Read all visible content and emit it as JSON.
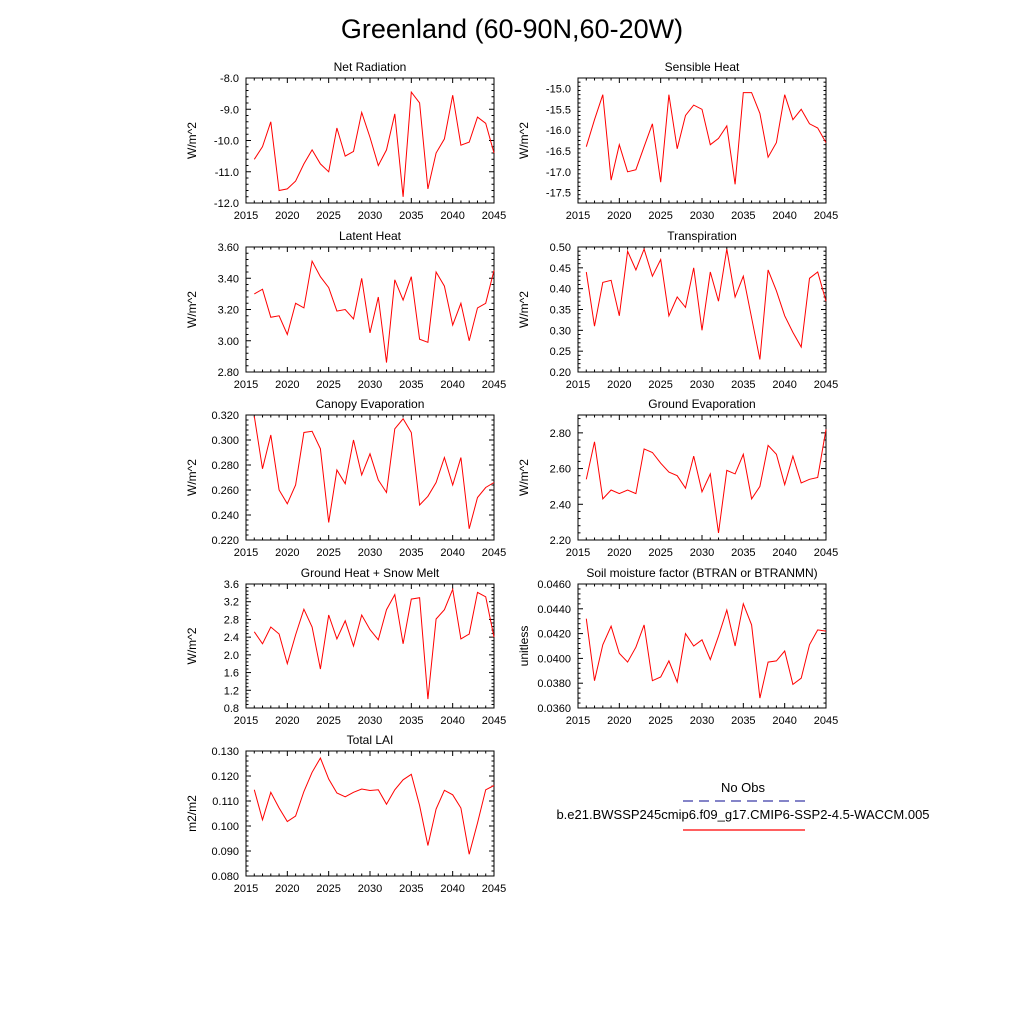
{
  "title": "Greenland (60-90N,60-20W)",
  "colors": {
    "model": "#ff0000",
    "obs": "#3b3ba8",
    "axis": "#000000"
  },
  "legend": {
    "obs_label": "No Obs",
    "model_label": "b.e21.BWSSP245cmip6.f09_g17.CMIP6-SSP2-4.5-WACCM.005"
  },
  "chart_data": [
    {
      "type": "line",
      "title": "Net Radiation",
      "ylabel": "W/m^2",
      "xlim": [
        2015,
        2045
      ],
      "ylim": [
        -12.0,
        -8.0
      ],
      "xticks": [
        2015,
        2020,
        2025,
        2030,
        2035,
        2040,
        2045
      ],
      "xtick_labels": [
        "2015",
        "2020",
        "2025",
        "2030",
        "2035",
        "2040",
        "2045"
      ],
      "yticks": [
        -12.0,
        -11.0,
        -10.0,
        -9.0,
        -8.0
      ],
      "ytick_labels": [
        "-12.0",
        "-11.0",
        "-10.0",
        "-9.0",
        "-8.0"
      ],
      "x": [
        2016,
        2017,
        2018,
        2019,
        2020,
        2021,
        2022,
        2023,
        2024,
        2025,
        2026,
        2027,
        2028,
        2029,
        2030,
        2031,
        2032,
        2033,
        2034,
        2035,
        2036,
        2037,
        2038,
        2039,
        2040,
        2041,
        2042,
        2043,
        2044,
        2045
      ],
      "series": [
        {
          "name": "b.e21.BWSSP245cmip6.f09_g17.CMIP6-SSP2-4.5-WACCM.005",
          "values": [
            -10.6,
            -10.2,
            -9.4,
            -11.6,
            -11.55,
            -11.3,
            -10.75,
            -10.3,
            -10.75,
            -11.0,
            -9.6,
            -10.5,
            -10.35,
            -9.1,
            -9.9,
            -10.8,
            -10.3,
            -9.15,
            -11.8,
            -8.45,
            -8.8,
            -11.55,
            -10.4,
            -9.95,
            -8.55,
            -10.15,
            -10.05,
            -9.25,
            -9.45,
            -10.4
          ]
        }
      ]
    },
    {
      "type": "line",
      "title": "Sensible Heat",
      "ylabel": "W/m^2",
      "xlim": [
        2015,
        2045
      ],
      "ylim": [
        -17.75,
        -14.75
      ],
      "xticks": [
        2015,
        2020,
        2025,
        2030,
        2035,
        2040,
        2045
      ],
      "xtick_labels": [
        "2015",
        "2020",
        "2025",
        "2030",
        "2035",
        "2040",
        "2045"
      ],
      "yticks": [
        -17.5,
        -17.0,
        -16.5,
        -16.0,
        -15.5,
        -15.0
      ],
      "ytick_labels": [
        "-17.5",
        "-17.0",
        "-16.5",
        "-16.0",
        "-15.5",
        "-15.0"
      ],
      "x": [
        2016,
        2017,
        2018,
        2019,
        2020,
        2021,
        2022,
        2023,
        2024,
        2025,
        2026,
        2027,
        2028,
        2029,
        2030,
        2031,
        2032,
        2033,
        2034,
        2035,
        2036,
        2037,
        2038,
        2039,
        2040,
        2041,
        2042,
        2043,
        2044,
        2045
      ],
      "series": [
        {
          "name": "b.e21.BWSSP245cmip6.f09_g17.CMIP6-SSP2-4.5-WACCM.005",
          "values": [
            -16.4,
            -15.75,
            -15.15,
            -17.2,
            -16.35,
            -17.0,
            -16.95,
            -16.4,
            -15.85,
            -17.25,
            -15.15,
            -16.45,
            -15.65,
            -15.4,
            -15.5,
            -16.35,
            -16.2,
            -15.9,
            -17.3,
            -15.1,
            -15.1,
            -15.6,
            -16.65,
            -16.3,
            -15.15,
            -15.75,
            -15.5,
            -15.85,
            -15.95,
            -16.3
          ]
        }
      ]
    },
    {
      "type": "line",
      "title": "Latent Heat",
      "ylabel": "W/m^2",
      "xlim": [
        2015,
        2045
      ],
      "ylim": [
        2.8,
        3.6
      ],
      "xticks": [
        2015,
        2020,
        2025,
        2030,
        2035,
        2040,
        2045
      ],
      "xtick_labels": [
        "2015",
        "2020",
        "2025",
        "2030",
        "2035",
        "2040",
        "2045"
      ],
      "yticks": [
        2.8,
        3.0,
        3.2,
        3.4,
        3.6
      ],
      "ytick_labels": [
        "2.80",
        "3.00",
        "3.20",
        "3.40",
        "3.60"
      ],
      "x": [
        2016,
        2017,
        2018,
        2019,
        2020,
        2021,
        2022,
        2023,
        2024,
        2025,
        2026,
        2027,
        2028,
        2029,
        2030,
        2031,
        2032,
        2033,
        2034,
        2035,
        2036,
        2037,
        2038,
        2039,
        2040,
        2041,
        2042,
        2043,
        2044,
        2045
      ],
      "series": [
        {
          "name": "b.e21.BWSSP245cmip6.f09_g17.CMIP6-SSP2-4.5-WACCM.005",
          "values": [
            3.3,
            3.33,
            3.15,
            3.16,
            3.04,
            3.24,
            3.21,
            3.51,
            3.41,
            3.34,
            3.19,
            3.2,
            3.14,
            3.4,
            3.05,
            3.28,
            2.86,
            3.39,
            3.26,
            3.41,
            3.01,
            2.99,
            3.44,
            3.35,
            3.1,
            3.24,
            3.0,
            3.21,
            3.24,
            3.45
          ]
        }
      ]
    },
    {
      "type": "line",
      "title": "Transpiration",
      "ylabel": "W/m^2",
      "xlim": [
        2015,
        2045
      ],
      "ylim": [
        0.2,
        0.5
      ],
      "xticks": [
        2015,
        2020,
        2025,
        2030,
        2035,
        2040,
        2045
      ],
      "xtick_labels": [
        "2015",
        "2020",
        "2025",
        "2030",
        "2035",
        "2040",
        "2045"
      ],
      "yticks": [
        0.2,
        0.25,
        0.3,
        0.35,
        0.4,
        0.45,
        0.5
      ],
      "ytick_labels": [
        "0.20",
        "0.25",
        "0.30",
        "0.35",
        "0.40",
        "0.45",
        "0.50"
      ],
      "x": [
        2016,
        2017,
        2018,
        2019,
        2020,
        2021,
        2022,
        2023,
        2024,
        2025,
        2026,
        2027,
        2028,
        2029,
        2030,
        2031,
        2032,
        2033,
        2034,
        2035,
        2036,
        2037,
        2038,
        2039,
        2040,
        2041,
        2042,
        2043,
        2044,
        2045
      ],
      "series": [
        {
          "name": "b.e21.BWSSP245cmip6.f09_g17.CMIP6-SSP2-4.5-WACCM.005",
          "values": [
            0.44,
            0.31,
            0.415,
            0.42,
            0.335,
            0.49,
            0.445,
            0.495,
            0.43,
            0.47,
            0.335,
            0.38,
            0.355,
            0.45,
            0.3,
            0.44,
            0.37,
            0.495,
            0.38,
            0.43,
            0.33,
            0.23,
            0.445,
            0.395,
            0.335,
            0.295,
            0.26,
            0.425,
            0.44,
            0.37
          ]
        }
      ]
    },
    {
      "type": "line",
      "title": "Canopy Evaporation",
      "ylabel": "W/m^2",
      "xlim": [
        2015,
        2045
      ],
      "ylim": [
        0.22,
        0.32
      ],
      "xticks": [
        2015,
        2020,
        2025,
        2030,
        2035,
        2040,
        2045
      ],
      "xtick_labels": [
        "2015",
        "2020",
        "2025",
        "2030",
        "2035",
        "2040",
        "2045"
      ],
      "yticks": [
        0.22,
        0.24,
        0.26,
        0.28,
        0.3,
        0.32
      ],
      "ytick_labels": [
        "0.220",
        "0.240",
        "0.260",
        "0.280",
        "0.300",
        "0.320"
      ],
      "x": [
        2016,
        2017,
        2018,
        2019,
        2020,
        2021,
        2022,
        2023,
        2024,
        2025,
        2026,
        2027,
        2028,
        2029,
        2030,
        2031,
        2032,
        2033,
        2034,
        2035,
        2036,
        2037,
        2038,
        2039,
        2040,
        2041,
        2042,
        2043,
        2044,
        2045
      ],
      "series": [
        {
          "name": "b.e21.BWSSP245cmip6.f09_g17.CMIP6-SSP2-4.5-WACCM.005",
          "values": [
            0.319,
            0.277,
            0.304,
            0.26,
            0.249,
            0.264,
            0.306,
            0.307,
            0.293,
            0.234,
            0.276,
            0.265,
            0.3,
            0.272,
            0.289,
            0.268,
            0.258,
            0.309,
            0.317,
            0.306,
            0.248,
            0.255,
            0.266,
            0.286,
            0.264,
            0.286,
            0.229,
            0.254,
            0.262,
            0.266
          ]
        }
      ]
    },
    {
      "type": "line",
      "title": "Ground Evaporation",
      "ylabel": "W/m^2",
      "xlim": [
        2015,
        2045
      ],
      "ylim": [
        2.2,
        2.9
      ],
      "xticks": [
        2015,
        2020,
        2025,
        2030,
        2035,
        2040,
        2045
      ],
      "xtick_labels": [
        "2015",
        "2020",
        "2025",
        "2030",
        "2035",
        "2040",
        "2045"
      ],
      "yticks": [
        2.2,
        2.4,
        2.6,
        2.8
      ],
      "ytick_labels": [
        "2.20",
        "2.40",
        "2.60",
        "2.80"
      ],
      "x": [
        2016,
        2017,
        2018,
        2019,
        2020,
        2021,
        2022,
        2023,
        2024,
        2025,
        2026,
        2027,
        2028,
        2029,
        2030,
        2031,
        2032,
        2033,
        2034,
        2035,
        2036,
        2037,
        2038,
        2039,
        2040,
        2041,
        2042,
        2043,
        2044,
        2045
      ],
      "series": [
        {
          "name": "b.e21.BWSSP245cmip6.f09_g17.CMIP6-SSP2-4.5-WACCM.005",
          "values": [
            2.54,
            2.75,
            2.43,
            2.48,
            2.46,
            2.48,
            2.46,
            2.71,
            2.69,
            2.63,
            2.58,
            2.56,
            2.49,
            2.67,
            2.47,
            2.57,
            2.24,
            2.59,
            2.57,
            2.68,
            2.43,
            2.5,
            2.73,
            2.68,
            2.51,
            2.67,
            2.52,
            2.54,
            2.55,
            2.82
          ]
        }
      ]
    },
    {
      "type": "line",
      "title": "Ground Heat + Snow Melt",
      "ylabel": "W/m^2",
      "xlim": [
        2015,
        2045
      ],
      "ylim": [
        0.8,
        3.6
      ],
      "xticks": [
        2015,
        2020,
        2025,
        2030,
        2035,
        2040,
        2045
      ],
      "xtick_labels": [
        "2015",
        "2020",
        "2025",
        "2030",
        "2035",
        "2040",
        "2045"
      ],
      "yticks": [
        0.8,
        1.2,
        1.6,
        2.0,
        2.4,
        2.8,
        3.2,
        3.6
      ],
      "ytick_labels": [
        "0.8",
        "1.2",
        "1.6",
        "2.0",
        "2.4",
        "2.8",
        "3.2",
        "3.6"
      ],
      "x": [
        2016,
        2017,
        2018,
        2019,
        2020,
        2021,
        2022,
        2023,
        2024,
        2025,
        2026,
        2027,
        2028,
        2029,
        2030,
        2031,
        2032,
        2033,
        2034,
        2035,
        2036,
        2037,
        2038,
        2039,
        2040,
        2041,
        2042,
        2043,
        2044,
        2045
      ],
      "series": [
        {
          "name": "b.e21.BWSSP245cmip6.f09_g17.CMIP6-SSP2-4.5-WACCM.005",
          "values": [
            2.52,
            2.25,
            2.63,
            2.47,
            1.8,
            2.45,
            3.03,
            2.63,
            1.68,
            2.9,
            2.36,
            2.77,
            2.2,
            2.9,
            2.57,
            2.34,
            3.02,
            3.36,
            2.25,
            3.26,
            3.29,
            1.0,
            2.81,
            3.02,
            3.48,
            2.36,
            2.47,
            3.41,
            3.31,
            2.4
          ]
        }
      ]
    },
    {
      "type": "line",
      "title": "Soil moisture factor (BTRAN or BTRANMN)",
      "ylabel": "unitless",
      "xlim": [
        2015,
        2045
      ],
      "ylim": [
        0.036,
        0.046
      ],
      "xticks": [
        2015,
        2020,
        2025,
        2030,
        2035,
        2040,
        2045
      ],
      "xtick_labels": [
        "2015",
        "2020",
        "2025",
        "2030",
        "2035",
        "2040",
        "2045"
      ],
      "yticks": [
        0.036,
        0.038,
        0.04,
        0.042,
        0.044,
        0.046
      ],
      "ytick_labels": [
        "0.0360",
        "0.0380",
        "0.0400",
        "0.0420",
        "0.0440",
        "0.0460"
      ],
      "x": [
        2016,
        2017,
        2018,
        2019,
        2020,
        2021,
        2022,
        2023,
        2024,
        2025,
        2026,
        2027,
        2028,
        2029,
        2030,
        2031,
        2032,
        2033,
        2034,
        2035,
        2036,
        2037,
        2038,
        2039,
        2040,
        2041,
        2042,
        2043,
        2044,
        2045
      ],
      "series": [
        {
          "name": "b.e21.BWSSP245cmip6.f09_g17.CMIP6-SSP2-4.5-WACCM.005",
          "values": [
            0.0432,
            0.0382,
            0.0411,
            0.0426,
            0.0404,
            0.0397,
            0.0409,
            0.0427,
            0.0382,
            0.0385,
            0.0398,
            0.0381,
            0.042,
            0.041,
            0.0415,
            0.0399,
            0.0418,
            0.0439,
            0.041,
            0.0444,
            0.0427,
            0.0368,
            0.0397,
            0.0398,
            0.0406,
            0.0379,
            0.0384,
            0.0411,
            0.0423,
            0.0422
          ]
        }
      ]
    },
    {
      "type": "line",
      "title": "Total LAI",
      "ylabel": "m2/m2",
      "xlim": [
        2015,
        2045
      ],
      "ylim": [
        0.08,
        0.13
      ],
      "xticks": [
        2015,
        2020,
        2025,
        2030,
        2035,
        2040,
        2045
      ],
      "xtick_labels": [
        "2015",
        "2020",
        "2025",
        "2030",
        "2035",
        "2040",
        "2045"
      ],
      "yticks": [
        0.08,
        0.09,
        0.1,
        0.11,
        0.12,
        0.13
      ],
      "ytick_labels": [
        "0.080",
        "0.090",
        "0.100",
        "0.110",
        "0.120",
        "0.130"
      ],
      "x": [
        2016,
        2017,
        2018,
        2019,
        2020,
        2021,
        2022,
        2023,
        2024,
        2025,
        2026,
        2027,
        2028,
        2029,
        2030,
        2031,
        2032,
        2033,
        2034,
        2035,
        2036,
        2037,
        2038,
        2039,
        2040,
        2041,
        2042,
        2043,
        2044,
        2045
      ],
      "series": [
        {
          "name": "b.e21.BWSSP245cmip6.f09_g17.CMIP6-SSP2-4.5-WACCM.005",
          "values": [
            0.1145,
            0.1025,
            0.1135,
            0.1072,
            0.1018,
            0.104,
            0.1138,
            0.1215,
            0.1272,
            0.1188,
            0.1132,
            0.1117,
            0.1135,
            0.1148,
            0.1142,
            0.1145,
            0.1087,
            0.1145,
            0.1185,
            0.1207,
            0.1082,
            0.0922,
            0.1068,
            0.1143,
            0.1125,
            0.1072,
            0.0887,
            0.1012,
            0.1145,
            0.1162
          ]
        }
      ]
    }
  ]
}
